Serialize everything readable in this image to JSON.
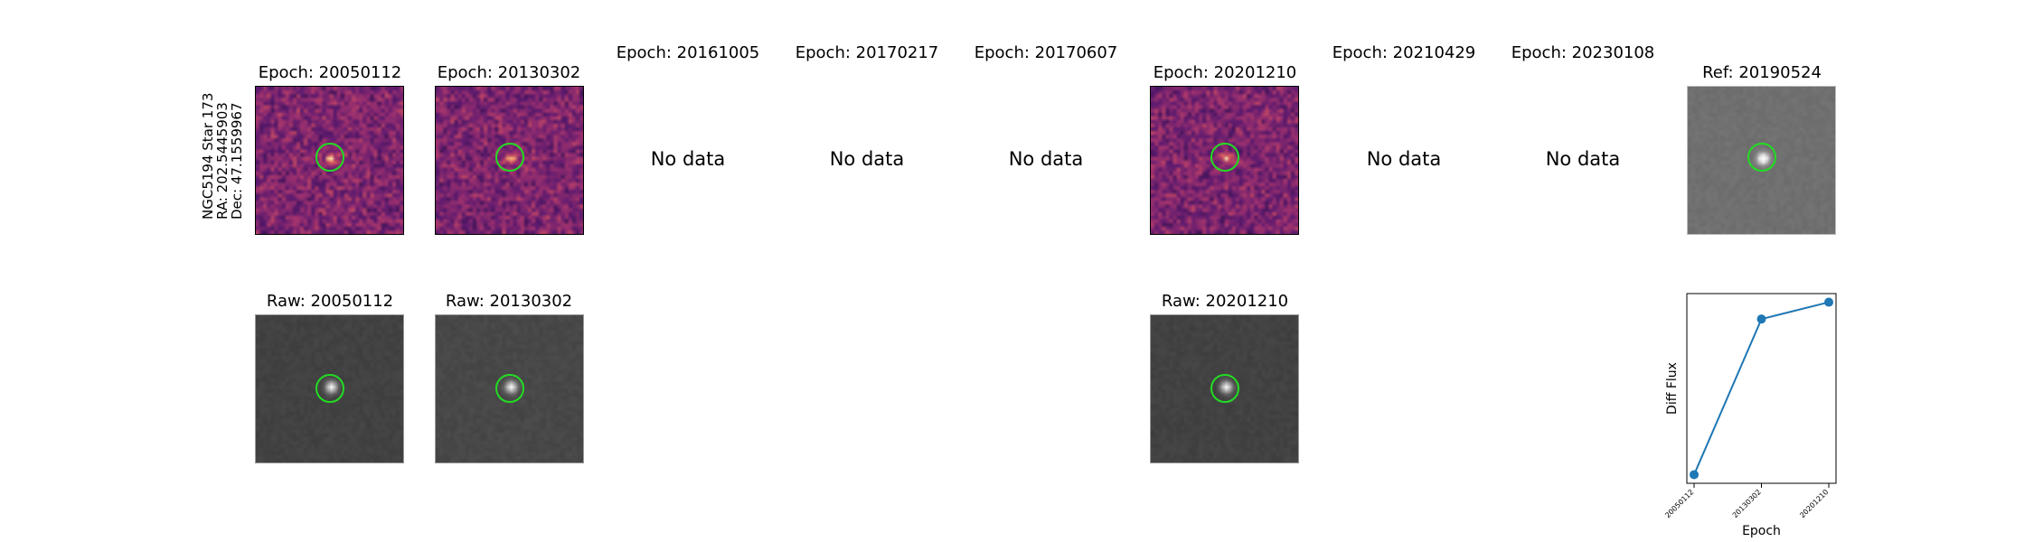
{
  "star": {
    "name": "NGC5194 Star 173",
    "ra": "RA: 202.5445903",
    "dec": "Dec: 47.1559967"
  },
  "epochs": [
    {
      "title": "Epoch: 20050112",
      "has_data": true
    },
    {
      "title": "Epoch: 20130302",
      "has_data": true
    },
    {
      "title": "Epoch: 20161005",
      "has_data": false
    },
    {
      "title": "Epoch: 20170217",
      "has_data": false
    },
    {
      "title": "Epoch: 20170607",
      "has_data": false
    },
    {
      "title": "Epoch: 20201210",
      "has_data": true
    },
    {
      "title": "Epoch: 20210429",
      "has_data": false
    },
    {
      "title": "Epoch: 20230108",
      "has_data": false
    }
  ],
  "no_data_label": "No data",
  "ref": {
    "title": "Ref: 20190524"
  },
  "raw": [
    {
      "title": "Raw: 20050112"
    },
    {
      "title": "Raw: 20130302"
    },
    {
      "title": "Raw: 20201210"
    }
  ],
  "chart_data": {
    "type": "line",
    "x": [
      "20050112",
      "20130302",
      "20201210"
    ],
    "values": [
      0.0,
      0.74,
      0.82
    ],
    "xlabel": "Epoch",
    "ylabel": "Diff Flux",
    "marker": "circle",
    "color": "#1f77b4",
    "grid": false,
    "legend": false
  }
}
